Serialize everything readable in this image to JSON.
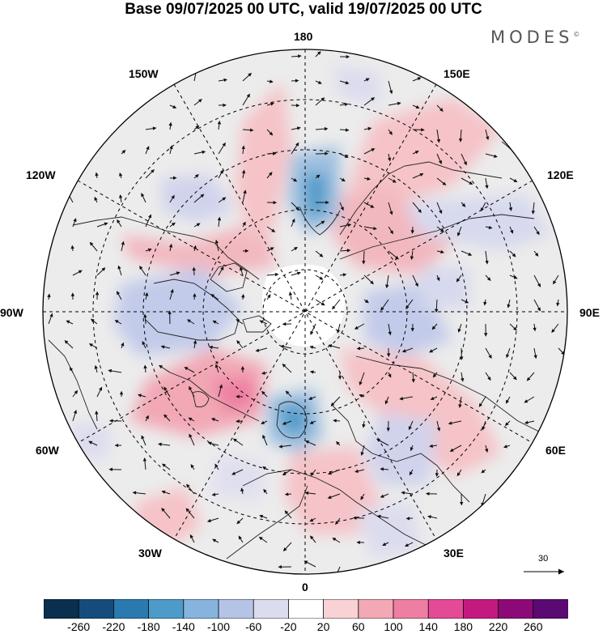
{
  "title": "Base 09/07/2025 00 UTC, valid 19/07/2025 00 UTC",
  "brand": "MODES",
  "brand_mark": "©",
  "longitude_labels": {
    "lon_180": "180",
    "lon_150e": "150E",
    "lon_120e": "120E",
    "lon_90e": "90E",
    "lon_60e": "60E",
    "lon_30e": "30E",
    "lon_0": "0",
    "lon_30w": "30W",
    "lon_60w": "60W",
    "lon_90w": "90W",
    "lon_120w": "120W",
    "lon_150w": "150W"
  },
  "reference_vector": {
    "value": "30"
  },
  "colorbar": {
    "colors": [
      "#0b2f4e",
      "#154c7c",
      "#2a7aaf",
      "#4d9bc9",
      "#86b4de",
      "#b5c4e6",
      "#dcdcef",
      "#ffffff",
      "#f8d2d5",
      "#f2a8b5",
      "#ee7fa2",
      "#e44b96",
      "#c41a80",
      "#8c0a78",
      "#5a0a72"
    ],
    "ticks": [
      "-260",
      "-220",
      "-180",
      "-140",
      "-100",
      "-60",
      "-20",
      "20",
      "60",
      "100",
      "140",
      "180",
      "220",
      "260"
    ]
  },
  "colors": {
    "map_background": "#ececec",
    "land_outline": "#222222",
    "grid": "#000000"
  }
}
